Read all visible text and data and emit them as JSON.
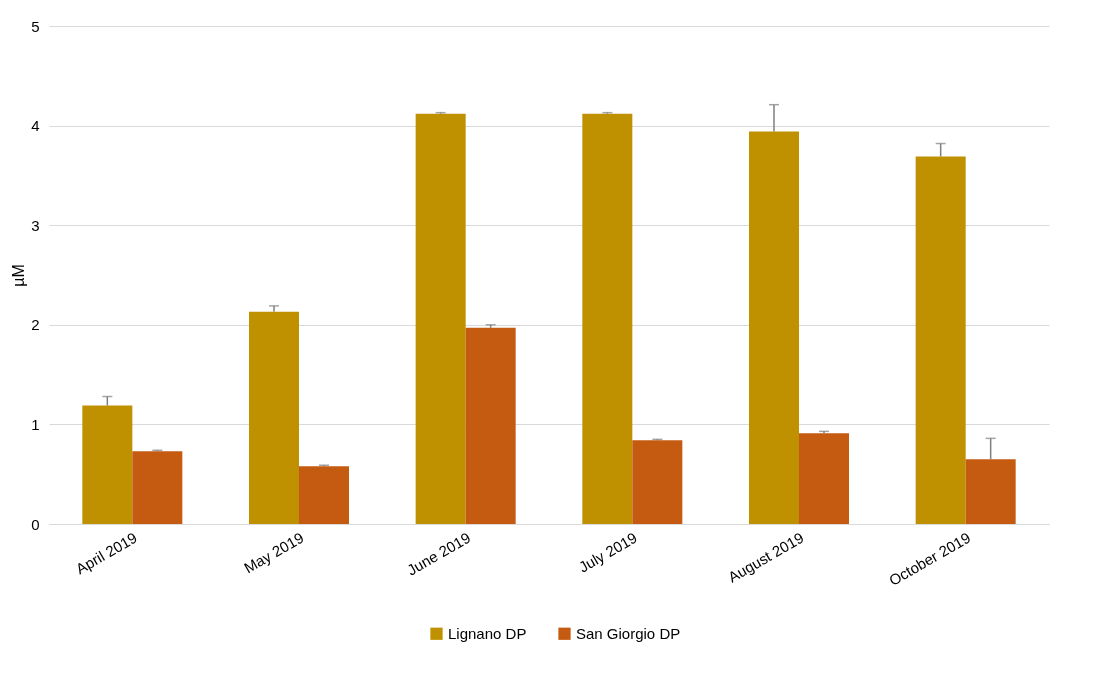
{
  "chart_data": {
    "type": "bar",
    "ylabel": "µM",
    "categories": [
      "April 2019",
      "May 2019",
      "June 2019",
      "July 2019",
      "August 2019",
      "October 2019"
    ],
    "series": [
      {
        "name": "Lignano DP",
        "color": "#bf9000",
        "values": [
          1.19,
          2.13,
          4.12,
          4.12,
          3.94,
          3.69
        ],
        "errors": [
          [
            1.19,
            1.28
          ],
          [
            2.13,
            2.19
          ],
          [
            4.12,
            4.13
          ],
          [
            4.12,
            4.13
          ],
          [
            3.94,
            4.21
          ],
          [
            3.69,
            3.82
          ]
        ]
      },
      {
        "name": "San Giorgio DP",
        "color": "#c55a11",
        "values": [
          0.73,
          0.58,
          1.97,
          0.84,
          0.91,
          0.65
        ],
        "errors": [
          [
            0.73,
            0.74
          ],
          [
            0.58,
            0.59
          ],
          [
            1.97,
            2.0
          ],
          [
            0.84,
            0.85
          ],
          [
            0.91,
            0.93
          ],
          [
            0.65,
            0.86
          ]
        ]
      }
    ],
    "ylim": [
      0,
      5
    ],
    "yticks": [
      0,
      1,
      2,
      3,
      4,
      5
    ],
    "grid": "y",
    "legend": "bottom"
  }
}
